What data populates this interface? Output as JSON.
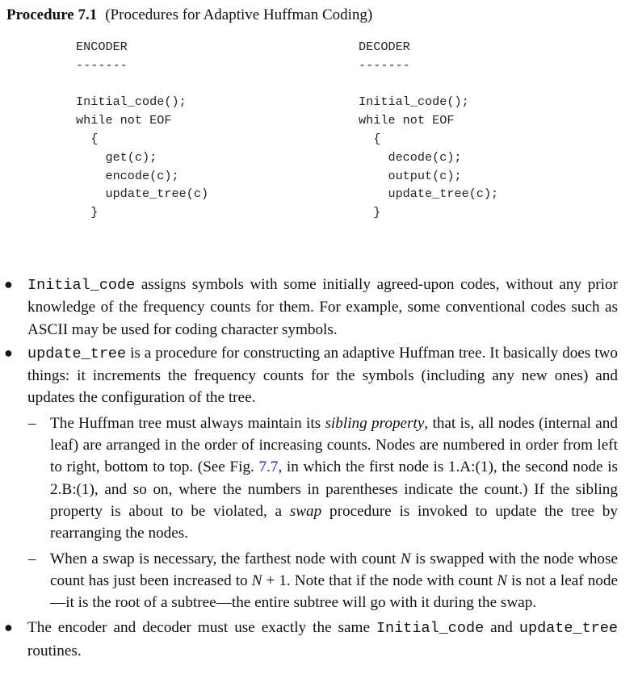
{
  "title": {
    "label": "Procedure 7.1",
    "caption": "(Procedures for Adaptive Huffman Coding)"
  },
  "encoder": {
    "code": "ENCODER\n-------\n\nInitial_code();\nwhile not EOF\n  {\n    get(c);\n    encode(c);\n    update_tree(c)\n  }"
  },
  "decoder": {
    "code": "DECODER\n-------\n\nInitial_code();\nwhile not EOF\n  {\n    decode(c);\n    output(c);\n    update_tree(c);\n  }"
  },
  "bullets": {
    "b1": {
      "code": "Initial_code",
      "text": " assigns symbols with some initially agreed-upon codes, without any prior knowledge of the frequency counts for them. For example, some conventional codes such as ASCII may be used for coding character symbols."
    },
    "b2": {
      "code": "update_tree",
      "text": " is a procedure for constructing an adaptive Huffman tree. It basically does two things: it increments the frequency counts for the symbols (including any new ones) and updates the configuration of the tree."
    },
    "s1": {
      "t1": "The Huffman tree must always maintain its ",
      "em": "sibling property",
      "t2": ", that is, all nodes (internal and leaf) are arranged in the order of increasing counts. Nodes are numbered in order from left to right, bottom to top. (See Fig. ",
      "ref": "7.7",
      "t3": ", in which the first node is 1.A:(1), the second node is 2.B:(1), and so on, where the numbers in parentheses indicate the count.) If the sibling property is about to be violated, a ",
      "em2": "swap",
      "t4": " procedure is invoked to update the tree by rearranging the nodes."
    },
    "s2": {
      "t1": "When a swap is necessary, the farthest node with count ",
      "n1": "N",
      "t2": " is swapped with the node whose count has just been increased to ",
      "n2": "N",
      "t3": " + 1. Note that if the node with count ",
      "n3": "N",
      "t4": " is not a leaf node—it is the root of a subtree—the entire subtree will go with it during the swap."
    },
    "b3": {
      "t1": "The encoder and decoder must use exactly the same ",
      "code1": "Initial_code",
      "t2": " and ",
      "code2": "update_tree",
      "t3": " routines."
    }
  }
}
